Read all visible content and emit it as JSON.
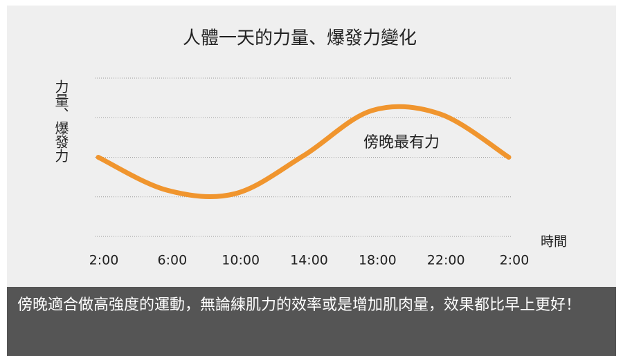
{
  "chart_data": {
    "type": "line",
    "title": "人體一天的力量、爆發力變化",
    "y_label": "力量、爆發力",
    "x_label": "時間",
    "categories": [
      "2:00",
      "6:00",
      "10:00",
      "14:00",
      "18:00",
      "22:00",
      "2:00"
    ],
    "series": [
      {
        "color": "#f0952e",
        "values": [
          2.0,
          1.17,
          1.08,
          2.04,
          3.18,
          3.09,
          2.0
        ]
      }
    ],
    "ylim": [
      0,
      4
    ],
    "yticks": [
      0,
      1,
      2,
      3,
      4
    ],
    "grid": true,
    "annotation": "傍晚最有力",
    "caption": "傍晚適合做高強度的運動，無論練肌力的效率或是增加肌肉量，效果都比早上更好！"
  }
}
